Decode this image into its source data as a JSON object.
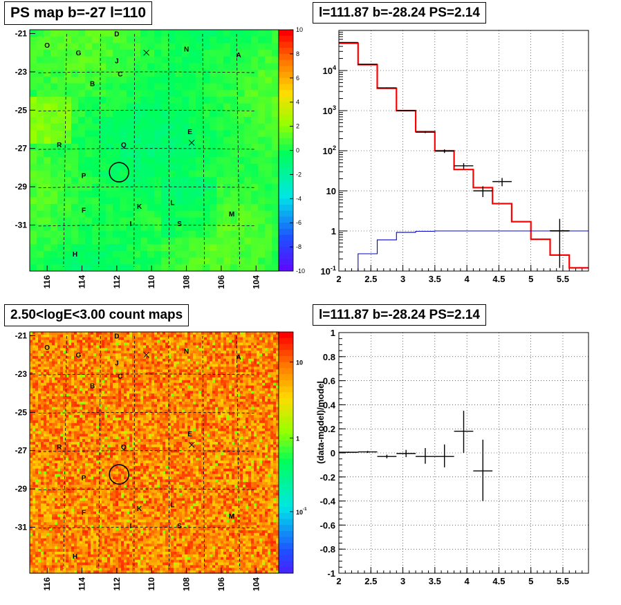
{
  "titles": {
    "tl": "PS map b=-27 l=110",
    "tr": "l=111.87 b=-28.24 PS=2.14",
    "bl": "2.50<logE<3.00 count maps",
    "br": "l=111.87 b=-28.24 PS=2.14"
  },
  "chart_data": [
    {
      "id": "ps-map",
      "type": "heatmap",
      "title": "PS map b=-27 l=110",
      "x_ticks": [
        "116",
        "114",
        "112",
        "110",
        "108",
        "106",
        "104"
      ],
      "y_ticks": [
        "-21",
        "-23",
        "-25",
        "-27",
        "-29",
        "-31"
      ],
      "colorbar": {
        "ticks": [
          "10",
          "8",
          "6",
          "4",
          "2",
          "0",
          "-2",
          "-4",
          "-6",
          "-8",
          "-10"
        ],
        "range": [
          -10,
          10
        ]
      },
      "source_labels": [
        "O",
        "D",
        "G",
        "J",
        "N",
        "A",
        "C",
        "B",
        "E",
        "R",
        "Q",
        "P",
        "F",
        "K",
        "L",
        "M",
        "I",
        "S",
        "H"
      ],
      "marker": {
        "l": 111.87,
        "b": -28.24
      }
    },
    {
      "id": "spectrum",
      "type": "line",
      "title": "l=111.87 b=-28.24 PS=2.14",
      "yscale": "log",
      "xlim": [
        2,
        5.9
      ],
      "ylim": [
        0.1,
        100000
      ],
      "x_ticks": [
        "2",
        "2.5",
        "3",
        "3.5",
        "4",
        "4.5",
        "5",
        "5.5"
      ],
      "y_ticks": [
        "10^-1",
        "1",
        "10",
        "10^2",
        "10^3",
        "10^4"
      ],
      "series": [
        {
          "color": "#ff0000",
          "x": [
            2.0,
            2.3,
            2.6,
            2.9,
            3.2,
            3.5,
            3.8,
            4.1,
            4.4,
            4.7,
            5.0,
            5.3,
            5.6
          ],
          "values": [
            48000,
            14000,
            3600,
            1000,
            300,
            100,
            34,
            12,
            4.8,
            1.7,
            0.62,
            0.25,
            0.12
          ]
        },
        {
          "color": "#0000cc",
          "x": [
            2.0,
            2.3,
            2.6,
            2.9,
            3.2,
            3.5,
            3.8,
            4.1,
            4.4,
            4.7,
            5.0,
            5.3,
            5.6
          ],
          "values": [
            0.1,
            0.27,
            0.6,
            0.92,
            0.98,
            1.0,
            1.0,
            1.0,
            1.0,
            1.0,
            1.0,
            1.02,
            1.0
          ]
        }
      ],
      "points": [
        {
          "x": 2.15,
          "y": 50000,
          "xerr": 0.15,
          "ylo": 49000,
          "yhi": 51000
        },
        {
          "x": 2.45,
          "y": 14300,
          "xerr": 0.15,
          "ylo": 14000,
          "yhi": 14600
        },
        {
          "x": 2.75,
          "y": 3700,
          "xerr": 0.15,
          "ylo": 3600,
          "yhi": 3800
        },
        {
          "x": 3.05,
          "y": 1000,
          "xerr": 0.15,
          "ylo": 970,
          "yhi": 1030
        },
        {
          "x": 3.35,
          "y": 290,
          "xerr": 0.15,
          "ylo": 275,
          "yhi": 305
        },
        {
          "x": 3.65,
          "y": 98,
          "xerr": 0.15,
          "ylo": 88,
          "yhi": 108
        },
        {
          "x": 3.95,
          "y": 42,
          "xerr": 0.15,
          "ylo": 35,
          "yhi": 49
        },
        {
          "x": 4.25,
          "y": 10,
          "xerr": 0.15,
          "ylo": 7,
          "yhi": 13
        },
        {
          "x": 4.55,
          "y": 17,
          "xerr": 0.15,
          "ylo": 13,
          "yhi": 21
        },
        {
          "x": 5.45,
          "y": 1.0,
          "xerr": 0.15,
          "ylo": 0.12,
          "yhi": 2.0
        }
      ]
    },
    {
      "id": "count-map",
      "type": "heatmap",
      "title": "2.50<logE<3.00 count maps",
      "x_ticks": [
        "116",
        "114",
        "112",
        "110",
        "108",
        "106",
        "104"
      ],
      "y_ticks": [
        "-21",
        "-23",
        "-25",
        "-27",
        "-29",
        "-31"
      ],
      "colorbar": {
        "ticks": [
          "10",
          "1",
          "10^-1"
        ],
        "scale": "log"
      },
      "source_labels": [
        "O",
        "D",
        "G",
        "J",
        "N",
        "A",
        "C",
        "B",
        "E",
        "R",
        "Q",
        "P",
        "F",
        "K",
        "L",
        "M",
        "I",
        "S",
        "H"
      ],
      "marker": {
        "l": 111.87,
        "b": -28.24
      }
    },
    {
      "id": "residual",
      "type": "scatter",
      "title": "l=111.87 b=-28.24 PS=2.14",
      "ylabel": "(data-model)/model",
      "xlim": [
        2,
        5.9
      ],
      "ylim": [
        -1,
        1
      ],
      "x_ticks": [
        "2",
        "2.5",
        "3",
        "3.5",
        "4",
        "4.5",
        "5",
        "5.5"
      ],
      "y_ticks": [
        "1",
        "0.8",
        "0.6",
        "0.4",
        "0.2",
        "0",
        "-0.2",
        "-0.4",
        "-0.6",
        "-0.8",
        "-1"
      ],
      "points": [
        {
          "x": 2.15,
          "y": 0.005,
          "xerr": 0.15,
          "ylo": 0.0,
          "yhi": 0.01
        },
        {
          "x": 2.45,
          "y": 0.008,
          "xerr": 0.15,
          "ylo": 0.0,
          "yhi": 0.016
        },
        {
          "x": 2.75,
          "y": -0.03,
          "xerr": 0.15,
          "ylo": -0.045,
          "yhi": -0.015
        },
        {
          "x": 3.05,
          "y": -0.005,
          "xerr": 0.15,
          "ylo": -0.035,
          "yhi": 0.025
        },
        {
          "x": 3.35,
          "y": -0.03,
          "xerr": 0.15,
          "ylo": -0.09,
          "yhi": 0.04
        },
        {
          "x": 3.65,
          "y": -0.03,
          "xerr": 0.15,
          "ylo": -0.12,
          "yhi": 0.07
        },
        {
          "x": 3.95,
          "y": 0.18,
          "xerr": 0.15,
          "ylo": 0.0,
          "yhi": 0.35
        },
        {
          "x": 4.25,
          "y": -0.15,
          "xerr": 0.15,
          "ylo": -0.4,
          "yhi": 0.11
        }
      ]
    }
  ]
}
